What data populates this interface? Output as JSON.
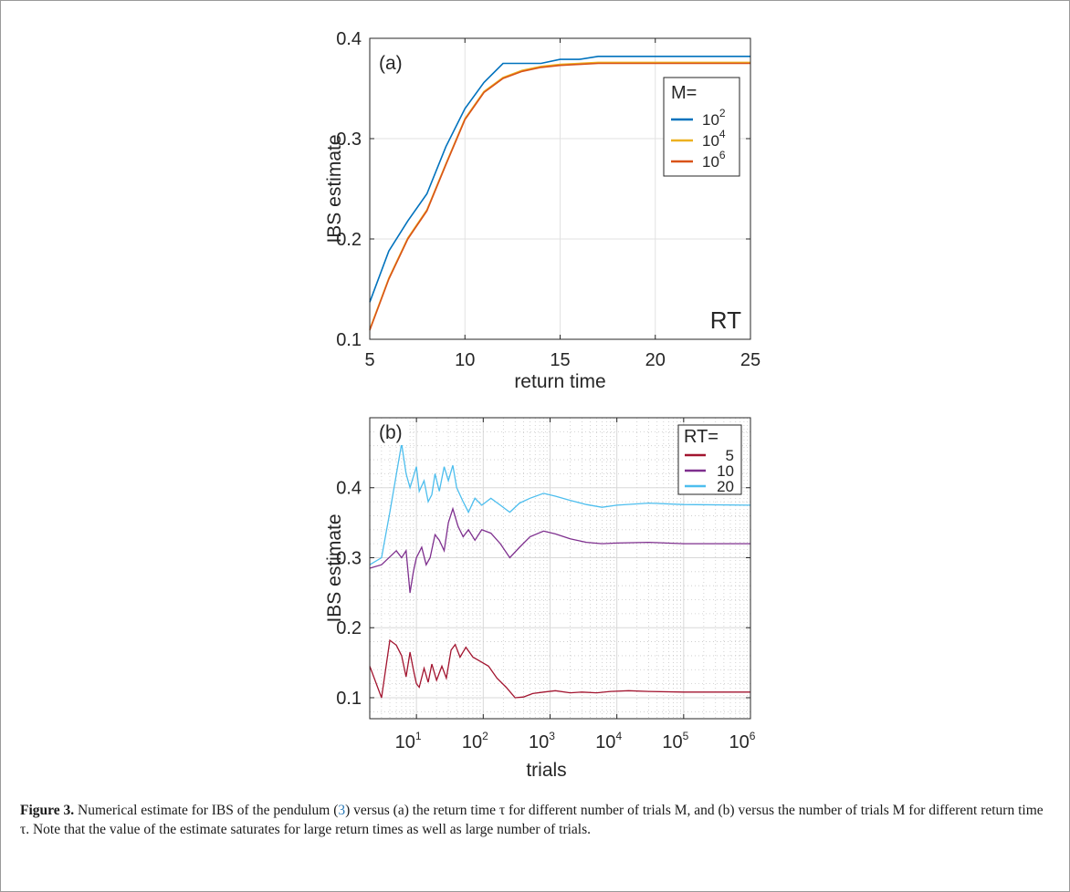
{
  "chart_data": [
    {
      "type": "line",
      "panel_label": "(a)",
      "corner_text": "RT",
      "xlabel": "return time",
      "ylabel": "IBS estimate",
      "xlim": [
        5,
        25
      ],
      "ylim": [
        0.1,
        0.4
      ],
      "xticks": [
        "5",
        "10",
        "15",
        "20",
        "25"
      ],
      "yticks": [
        "0.1",
        "0.2",
        "0.3",
        "0.4"
      ],
      "grid": true,
      "legend": {
        "title": "M=",
        "position": "top-right"
      },
      "x": [
        5,
        6,
        7,
        8,
        9,
        10,
        11,
        12,
        13,
        14,
        15,
        16,
        17,
        18,
        19,
        20,
        21,
        22,
        23,
        24,
        25
      ],
      "series": [
        {
          "name": "10^2",
          "color": "#0072bd",
          "values": [
            0.137,
            0.188,
            0.218,
            0.245,
            0.292,
            0.33,
            0.356,
            0.375,
            0.375,
            0.375,
            0.379,
            0.379,
            0.382,
            0.382,
            0.382,
            0.382,
            0.382,
            0.382,
            0.382,
            0.382,
            0.382
          ]
        },
        {
          "name": "10^4",
          "color": "#edb120",
          "values": [
            0.11,
            0.161,
            0.201,
            0.229,
            0.275,
            0.32,
            0.347,
            0.361,
            0.368,
            0.372,
            0.374,
            0.375,
            0.376,
            0.376,
            0.376,
            0.376,
            0.376,
            0.376,
            0.376,
            0.376,
            0.376
          ]
        },
        {
          "name": "10^6",
          "color": "#d95319",
          "values": [
            0.109,
            0.16,
            0.2,
            0.228,
            0.274,
            0.319,
            0.346,
            0.36,
            0.367,
            0.371,
            0.373,
            0.374,
            0.375,
            0.375,
            0.375,
            0.375,
            0.375,
            0.375,
            0.375,
            0.375,
            0.375
          ]
        }
      ]
    },
    {
      "type": "line",
      "panel_label": "(b)",
      "xlabel": "trials",
      "ylabel": "IBS estimate",
      "xscale": "log",
      "xlim": [
        2,
        1000000
      ],
      "ylim": [
        0.07,
        0.5
      ],
      "xticks": [
        "10^1",
        "10^2",
        "10^3",
        "10^4",
        "10^5",
        "10^6"
      ],
      "yticks": [
        "0.1",
        "0.2",
        "0.3",
        "0.4"
      ],
      "grid": true,
      "legend": {
        "title": "RT=",
        "position": "top-right"
      },
      "series": [
        {
          "name": "5",
          "color": "#a2142f",
          "points": [
            [
              2,
              0.145
            ],
            [
              3,
              0.1
            ],
            [
              4,
              0.182
            ],
            [
              5,
              0.175
            ],
            [
              6,
              0.16
            ],
            [
              7,
              0.13
            ],
            [
              8,
              0.165
            ],
            [
              9,
              0.14
            ],
            [
              10,
              0.12
            ],
            [
              11,
              0.115
            ],
            [
              13,
              0.142
            ],
            [
              15,
              0.122
            ],
            [
              17,
              0.148
            ],
            [
              20,
              0.125
            ],
            [
              24,
              0.145
            ],
            [
              28,
              0.128
            ],
            [
              33,
              0.168
            ],
            [
              38,
              0.176
            ],
            [
              45,
              0.158
            ],
            [
              55,
              0.172
            ],
            [
              70,
              0.158
            ],
            [
              90,
              0.152
            ],
            [
              120,
              0.145
            ],
            [
              160,
              0.128
            ],
            [
              220,
              0.115
            ],
            [
              300,
              0.1
            ],
            [
              400,
              0.101
            ],
            [
              550,
              0.106
            ],
            [
              800,
              0.108
            ],
            [
              1200,
              0.11
            ],
            [
              2000,
              0.107
            ],
            [
              3000,
              0.108
            ],
            [
              5000,
              0.107
            ],
            [
              8000,
              0.109
            ],
            [
              15000,
              0.11
            ],
            [
              30000,
              0.109
            ],
            [
              100000,
              0.108
            ],
            [
              1000000,
              0.108
            ]
          ]
        },
        {
          "name": "10",
          "color": "#7e2f8e",
          "points": [
            [
              2,
              0.285
            ],
            [
              3,
              0.29
            ],
            [
              5,
              0.31
            ],
            [
              6,
              0.3
            ],
            [
              7,
              0.31
            ],
            [
              8,
              0.25
            ],
            [
              9,
              0.28
            ],
            [
              10,
              0.3
            ],
            [
              12,
              0.315
            ],
            [
              14,
              0.29
            ],
            [
              16,
              0.3
            ],
            [
              19,
              0.333
            ],
            [
              22,
              0.325
            ],
            [
              26,
              0.31
            ],
            [
              30,
              0.35
            ],
            [
              35,
              0.37
            ],
            [
              42,
              0.345
            ],
            [
              50,
              0.33
            ],
            [
              60,
              0.34
            ],
            [
              75,
              0.325
            ],
            [
              95,
              0.34
            ],
            [
              130,
              0.335
            ],
            [
              180,
              0.32
            ],
            [
              250,
              0.3
            ],
            [
              350,
              0.315
            ],
            [
              500,
              0.33
            ],
            [
              800,
              0.338
            ],
            [
              1200,
              0.334
            ],
            [
              2000,
              0.327
            ],
            [
              3500,
              0.322
            ],
            [
              6000,
              0.32
            ],
            [
              10000,
              0.321
            ],
            [
              30000,
              0.322
            ],
            [
              100000,
              0.32
            ],
            [
              1000000,
              0.32
            ]
          ]
        },
        {
          "name": "20",
          "color": "#4dbeee",
          "points": [
            [
              2,
              0.29
            ],
            [
              3,
              0.3
            ],
            [
              4,
              0.365
            ],
            [
              6,
              0.463
            ],
            [
              7,
              0.42
            ],
            [
              8,
              0.4
            ],
            [
              10,
              0.43
            ],
            [
              11,
              0.395
            ],
            [
              13,
              0.41
            ],
            [
              15,
              0.38
            ],
            [
              17,
              0.39
            ],
            [
              19,
              0.42
            ],
            [
              22,
              0.395
            ],
            [
              26,
              0.43
            ],
            [
              30,
              0.41
            ],
            [
              35,
              0.432
            ],
            [
              40,
              0.4
            ],
            [
              50,
              0.38
            ],
            [
              60,
              0.365
            ],
            [
              75,
              0.385
            ],
            [
              95,
              0.375
            ],
            [
              130,
              0.385
            ],
            [
              180,
              0.375
            ],
            [
              250,
              0.365
            ],
            [
              350,
              0.378
            ],
            [
              500,
              0.385
            ],
            [
              800,
              0.392
            ],
            [
              1200,
              0.388
            ],
            [
              2000,
              0.382
            ],
            [
              3500,
              0.376
            ],
            [
              6000,
              0.372
            ],
            [
              10000,
              0.375
            ],
            [
              30000,
              0.378
            ],
            [
              100000,
              0.376
            ],
            [
              1000000,
              0.375
            ]
          ]
        }
      ]
    }
  ],
  "caption": {
    "label": "Figure 3.",
    "seg1": " Numerical estimate for IBS of the pendulum (",
    "ref": "3",
    "seg2": ") versus (a) the return time τ for different number of trials M, and (b) versus the number of trials M for different return time τ. Note that the value of the estimate saturates for large return times as well as large number of trials."
  }
}
